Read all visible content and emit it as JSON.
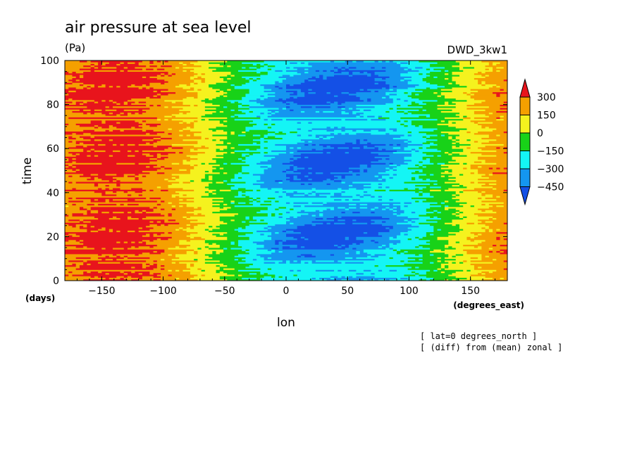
{
  "chart_data": {
    "type": "heatmap",
    "title": "air pressure at sea level",
    "units": "(Pa)",
    "model_label": "DWD_3kw1",
    "ylabel": "time",
    "ylabel_units": "(days)",
    "xlabel": "lon",
    "xlabel_units": "(degrees_east)",
    "xlim": [
      -180,
      180
    ],
    "ylim": [
      0,
      100
    ],
    "x_ticks": [
      -150,
      -100,
      -50,
      0,
      50,
      100,
      150
    ],
    "y_ticks": [
      0,
      20,
      40,
      60,
      80,
      100
    ],
    "colorbar": {
      "levels": [
        300,
        150,
        0,
        -150,
        -300,
        -450
      ],
      "colors": [
        "#e8141c",
        "#f5a000",
        "#f5f21e",
        "#18d218",
        "#14f5f5",
        "#1496f0",
        "#1450e6"
      ]
    },
    "annotations": [
      "[ lat=0 degrees_north ]",
      "[ (diff) from (mean) zonal ]"
    ]
  }
}
